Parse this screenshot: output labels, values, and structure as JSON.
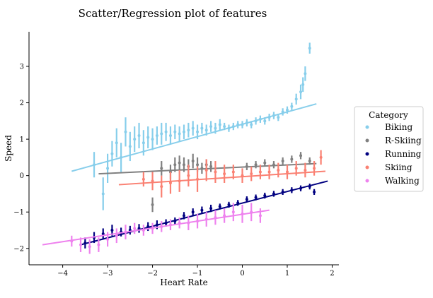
{
  "chart_data": {
    "type": "scatter",
    "title": "Scatter/Regression plot of features",
    "xlabel": "Heart Rate",
    "ylabel": "Speed",
    "xlim": [
      -4.75,
      2.15
    ],
    "ylim": [
      -2.45,
      3.95
    ],
    "xticks": [
      -4,
      -3,
      -2,
      -1,
      0,
      1,
      2
    ],
    "xtick_labels": [
      "−4",
      "−3",
      "−2",
      "−1",
      "0",
      "1",
      "2"
    ],
    "yticks": [
      -2,
      -1,
      0,
      1,
      2,
      3
    ],
    "ytick_labels": [
      "−2",
      "−1",
      "0",
      "1",
      "2",
      "3"
    ],
    "grid": false,
    "legend": {
      "title": "Category",
      "placement": "right"
    },
    "series": [
      {
        "name": "Biking",
        "color": "#87ceeb",
        "regression": {
          "x": [
            -3.8,
            1.65
          ],
          "y": [
            0.12,
            1.97
          ]
        },
        "points": [
          [
            -3.3,
            0.3,
            0.35
          ],
          [
            -3.1,
            -0.5,
            0.45
          ],
          [
            -3.0,
            0.2,
            0.4
          ],
          [
            -2.9,
            0.6,
            0.35
          ],
          [
            -2.8,
            0.9,
            0.4
          ],
          [
            -2.7,
            0.5,
            0.4
          ],
          [
            -2.6,
            1.2,
            0.4
          ],
          [
            -2.5,
            0.8,
            0.4
          ],
          [
            -2.4,
            1.0,
            0.35
          ],
          [
            -2.3,
            1.1,
            0.35
          ],
          [
            -2.2,
            0.9,
            0.35
          ],
          [
            -2.1,
            1.05,
            0.3
          ],
          [
            -2.0,
            1.0,
            0.3
          ],
          [
            -1.9,
            1.1,
            0.25
          ],
          [
            -1.8,
            1.15,
            0.3
          ],
          [
            -1.7,
            1.2,
            0.25
          ],
          [
            -1.6,
            1.1,
            0.25
          ],
          [
            -1.5,
            1.2,
            0.2
          ],
          [
            -1.4,
            1.15,
            0.2
          ],
          [
            -1.3,
            1.2,
            0.2
          ],
          [
            -1.2,
            1.25,
            0.2
          ],
          [
            -1.1,
            1.3,
            0.2
          ],
          [
            -1.0,
            1.2,
            0.2
          ],
          [
            -0.9,
            1.3,
            0.15
          ],
          [
            -0.8,
            1.25,
            0.15
          ],
          [
            -0.7,
            1.35,
            0.15
          ],
          [
            -0.6,
            1.3,
            0.15
          ],
          [
            -0.5,
            1.4,
            0.15
          ],
          [
            -0.4,
            1.35,
            0.1
          ],
          [
            -0.3,
            1.3,
            0.1
          ],
          [
            -0.2,
            1.35,
            0.1
          ],
          [
            -0.1,
            1.4,
            0.1
          ],
          [
            0.0,
            1.4,
            0.1
          ],
          [
            0.1,
            1.45,
            0.1
          ],
          [
            0.2,
            1.4,
            0.1
          ],
          [
            0.3,
            1.5,
            0.1
          ],
          [
            0.4,
            1.55,
            0.1
          ],
          [
            0.5,
            1.5,
            0.1
          ],
          [
            0.6,
            1.6,
            0.1
          ],
          [
            0.7,
            1.65,
            0.1
          ],
          [
            0.8,
            1.6,
            0.1
          ],
          [
            0.9,
            1.75,
            0.1
          ],
          [
            1.0,
            1.8,
            0.1
          ],
          [
            1.1,
            1.9,
            0.1
          ],
          [
            1.2,
            2.1,
            0.15
          ],
          [
            1.3,
            2.3,
            0.2
          ],
          [
            1.35,
            2.5,
            0.2
          ],
          [
            1.4,
            2.8,
            0.2
          ],
          [
            1.5,
            3.5,
            0.15
          ]
        ]
      },
      {
        "name": "R-Skiing",
        "color": "#808080",
        "regression": {
          "x": [
            -3.2,
            1.65
          ],
          "y": [
            0.05,
            0.33
          ]
        },
        "points": [
          [
            -2.0,
            -0.8,
            0.2
          ],
          [
            -1.8,
            0.2,
            0.2
          ],
          [
            -1.6,
            0.1,
            0.2
          ],
          [
            -1.5,
            0.3,
            0.2
          ],
          [
            -1.4,
            0.35,
            0.2
          ],
          [
            -1.3,
            0.3,
            0.2
          ],
          [
            -1.2,
            0.25,
            0.2
          ],
          [
            -1.1,
            0.4,
            0.2
          ],
          [
            -1.0,
            0.3,
            0.2
          ],
          [
            -0.9,
            0.2,
            0.15
          ],
          [
            -0.8,
            0.3,
            0.15
          ],
          [
            -0.7,
            0.25,
            0.15
          ],
          [
            0.1,
            0.25,
            0.1
          ],
          [
            0.3,
            0.3,
            0.1
          ],
          [
            0.5,
            0.35,
            0.1
          ],
          [
            0.7,
            0.3,
            0.1
          ],
          [
            0.9,
            0.4,
            0.1
          ],
          [
            1.1,
            0.45,
            0.1
          ],
          [
            1.3,
            0.55,
            0.1
          ],
          [
            1.5,
            0.4,
            0.1
          ]
        ]
      },
      {
        "name": "Running",
        "color": "#000080",
        "regression": {
          "x": [
            -3.6,
            1.9
          ],
          "y": [
            -1.9,
            -0.15
          ]
        },
        "points": [
          [
            -3.5,
            -1.85,
            0.15
          ],
          [
            -3.3,
            -1.7,
            0.15
          ],
          [
            -3.1,
            -1.6,
            0.15
          ],
          [
            -2.9,
            -1.5,
            0.15
          ],
          [
            -2.7,
            -1.55,
            0.12
          ],
          [
            -2.5,
            -1.5,
            0.12
          ],
          [
            -2.3,
            -1.45,
            0.12
          ],
          [
            -2.1,
            -1.4,
            0.12
          ],
          [
            -1.9,
            -1.35,
            0.12
          ],
          [
            -1.7,
            -1.3,
            0.1
          ],
          [
            -1.5,
            -1.25,
            0.1
          ],
          [
            -1.3,
            -1.1,
            0.1
          ],
          [
            -1.1,
            -1.0,
            0.1
          ],
          [
            -0.9,
            -0.95,
            0.1
          ],
          [
            -0.7,
            -0.9,
            0.1
          ],
          [
            -0.5,
            -0.85,
            0.08
          ],
          [
            -0.3,
            -0.8,
            0.08
          ],
          [
            -0.1,
            -0.75,
            0.08
          ],
          [
            0.1,
            -0.65,
            0.08
          ],
          [
            0.3,
            -0.6,
            0.08
          ],
          [
            0.5,
            -0.55,
            0.08
          ],
          [
            0.7,
            -0.5,
            0.08
          ],
          [
            0.9,
            -0.45,
            0.08
          ],
          [
            1.1,
            -0.4,
            0.08
          ],
          [
            1.3,
            -0.35,
            0.08
          ],
          [
            1.5,
            -0.3,
            0.08
          ],
          [
            1.6,
            -0.45,
            0.08
          ]
        ]
      },
      {
        "name": "Skiing",
        "color": "#fa8072",
        "regression": {
          "x": [
            -2.75,
            1.85
          ],
          "y": [
            -0.25,
            0.12
          ]
        },
        "points": [
          [
            -2.2,
            -0.1,
            0.2
          ],
          [
            -2.0,
            -0.15,
            0.25
          ],
          [
            -1.8,
            -0.3,
            0.3
          ],
          [
            -1.6,
            -0.2,
            0.3
          ],
          [
            -1.4,
            -0.15,
            0.3
          ],
          [
            -1.2,
            0.0,
            0.3
          ],
          [
            -1.0,
            -0.1,
            0.35
          ],
          [
            -0.8,
            0.15,
            0.3
          ],
          [
            -0.6,
            0.1,
            0.3
          ],
          [
            -0.4,
            0.05,
            0.25
          ],
          [
            -0.2,
            0.1,
            0.2
          ],
          [
            0.0,
            0.0,
            0.2
          ],
          [
            0.2,
            0.05,
            0.2
          ],
          [
            0.4,
            0.1,
            0.2
          ],
          [
            0.6,
            0.1,
            0.2
          ],
          [
            0.8,
            0.15,
            0.2
          ],
          [
            1.0,
            0.1,
            0.2
          ],
          [
            1.2,
            0.2,
            0.2
          ],
          [
            1.4,
            0.15,
            0.2
          ],
          [
            1.6,
            0.2,
            0.2
          ],
          [
            1.75,
            0.5,
            0.2
          ]
        ]
      },
      {
        "name": "Walking",
        "color": "#ee82ee",
        "regression": {
          "x": [
            -4.45,
            0.6
          ],
          "y": [
            -1.9,
            -0.95
          ]
        },
        "points": [
          [
            -3.8,
            -1.8,
            0.15
          ],
          [
            -3.6,
            -1.9,
            0.2
          ],
          [
            -3.4,
            -1.95,
            0.2
          ],
          [
            -3.2,
            -1.9,
            0.2
          ],
          [
            -3.0,
            -1.75,
            0.2
          ],
          [
            -2.8,
            -1.65,
            0.2
          ],
          [
            -2.6,
            -1.55,
            0.2
          ],
          [
            -2.4,
            -1.45,
            0.15
          ],
          [
            -2.2,
            -1.5,
            0.15
          ],
          [
            -2.0,
            -1.45,
            0.15
          ],
          [
            -1.8,
            -1.4,
            0.15
          ],
          [
            -1.6,
            -1.35,
            0.15
          ],
          [
            -1.4,
            -1.3,
            0.15
          ],
          [
            -1.2,
            -1.3,
            0.2
          ],
          [
            -1.0,
            -1.25,
            0.2
          ],
          [
            -0.8,
            -1.2,
            0.2
          ],
          [
            -0.6,
            -1.15,
            0.2
          ],
          [
            -0.4,
            -1.1,
            0.2
          ],
          [
            -0.2,
            -1.0,
            0.25
          ],
          [
            0.0,
            -1.05,
            0.25
          ],
          [
            0.2,
            -1.0,
            0.25
          ],
          [
            0.4,
            -1.1,
            0.2
          ]
        ]
      }
    ]
  }
}
